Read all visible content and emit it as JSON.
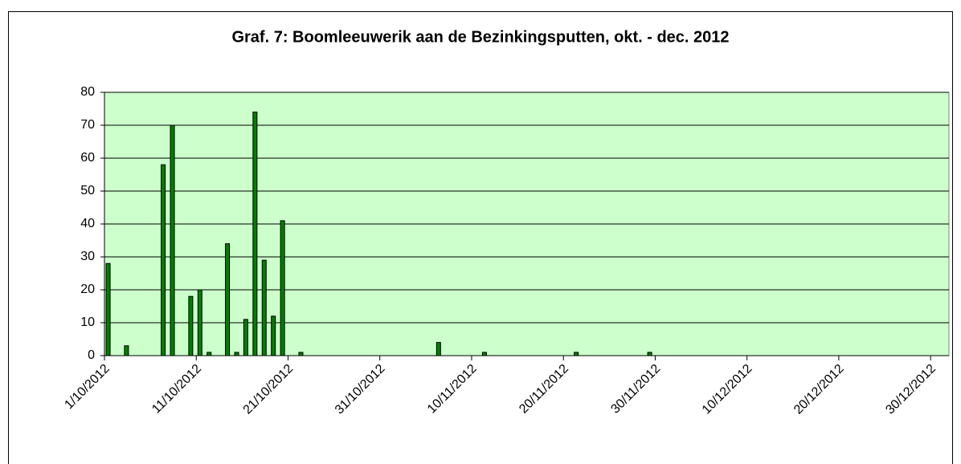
{
  "chart_data": {
    "type": "bar",
    "title": "Graf. 7: Boomleeuwerik aan de Bezinkingsputten, okt. - dec. 2012",
    "x": [
      "2012-10-01",
      "2012-10-03",
      "2012-10-07",
      "2012-10-08",
      "2012-10-10",
      "2012-10-11",
      "2012-10-12",
      "2012-10-14",
      "2012-10-15",
      "2012-10-16",
      "2012-10-17",
      "2012-10-18",
      "2012-10-19",
      "2012-10-20",
      "2012-10-22",
      "2012-11-06",
      "2012-11-11",
      "2012-11-21",
      "2012-11-29"
    ],
    "values": [
      28,
      3,
      58,
      70,
      18,
      20,
      1,
      34,
      1,
      11,
      74,
      29,
      12,
      41,
      1,
      4,
      1,
      1,
      1
    ],
    "color": "#008000",
    "background": "#ccffcc",
    "ylim": [
      0,
      80
    ],
    "yticks": [
      0,
      10,
      20,
      30,
      40,
      50,
      60,
      70,
      80
    ],
    "xlim": [
      "2012-10-01",
      "2013-01-01"
    ],
    "xticks": [
      {
        "value": "2012-10-01",
        "label": "1/10/2012"
      },
      {
        "value": "2012-10-11",
        "label": "11/10/2012"
      },
      {
        "value": "2012-10-21",
        "label": "21/10/2012"
      },
      {
        "value": "2012-10-31",
        "label": "31/10/2012"
      },
      {
        "value": "2012-11-10",
        "label": "10/11/2012"
      },
      {
        "value": "2012-11-20",
        "label": "20/11/2012"
      },
      {
        "value": "2012-11-30",
        "label": "30/11/2012"
      },
      {
        "value": "2012-12-10",
        "label": "10/12/2012"
      },
      {
        "value": "2012-12-20",
        "label": "20/12/2012"
      },
      {
        "value": "2012-12-30",
        "label": "30/12/2012"
      }
    ],
    "grid": true
  }
}
